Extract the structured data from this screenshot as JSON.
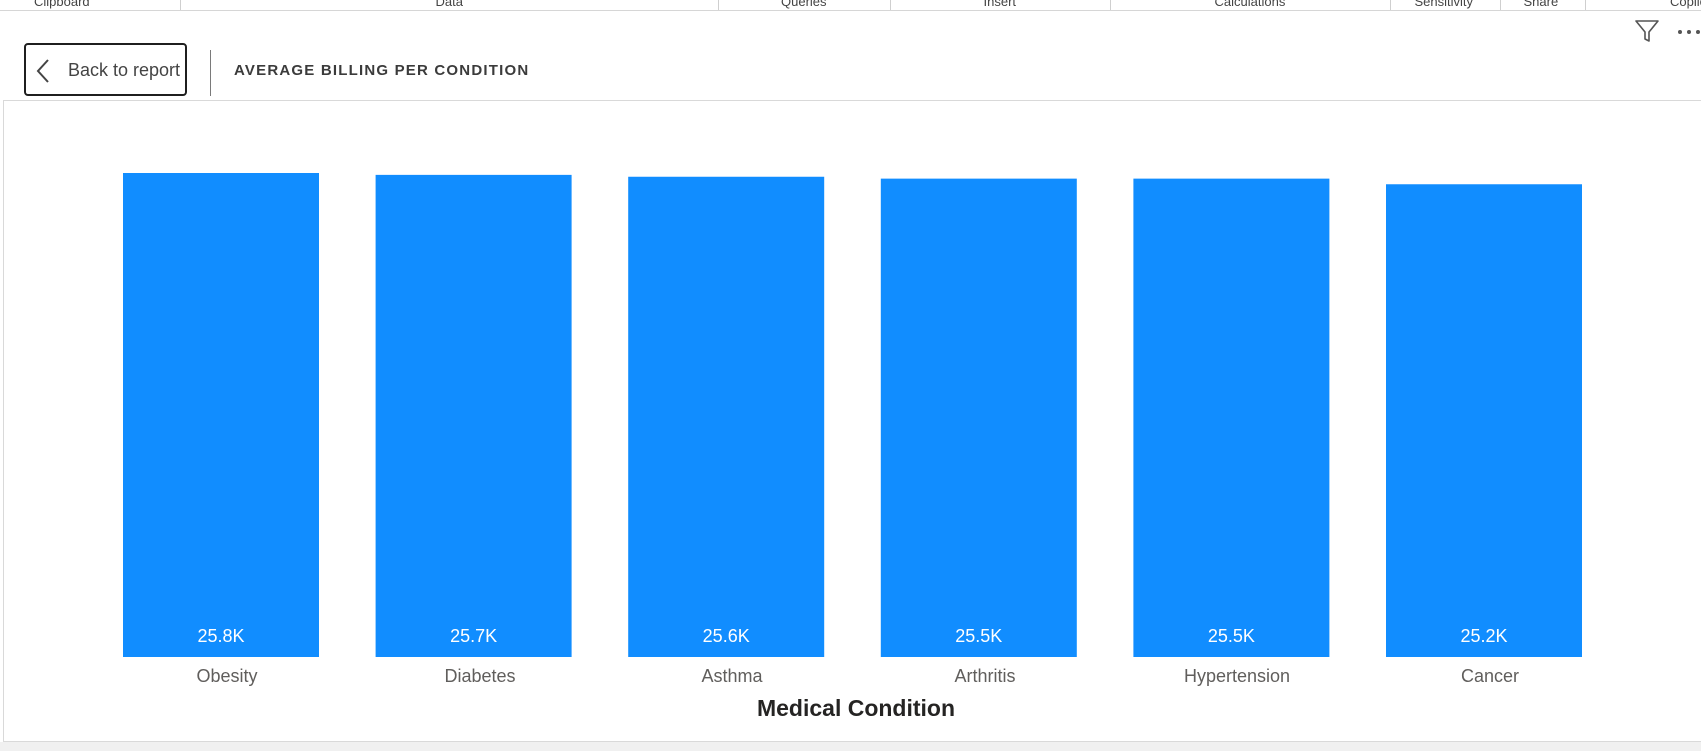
{
  "ribbon": {
    "groups": [
      "Clipboard",
      "Data",
      "Queries",
      "Insert",
      "Calculations",
      "Sensitivity",
      "Share",
      "Copilot"
    ]
  },
  "header": {
    "back_label": "Back to report",
    "title": "AVERAGE BILLING PER CONDITION"
  },
  "icons": {
    "back": "chevron-left-icon",
    "filter": "filter-icon",
    "more": "more-options-icon"
  },
  "colors": {
    "bar": "#118DFF",
    "data_label": "#FFFFFF",
    "axis_text": "#605E5C",
    "axis_title": "#252423"
  },
  "chart_data": {
    "type": "bar",
    "title": "",
    "xlabel": "Medical Condition",
    "ylabel": "",
    "categories": [
      "Obesity",
      "Diabetes",
      "Asthma",
      "Arthritis",
      "Hypertension",
      "Cancer"
    ],
    "values": [
      25800,
      25700,
      25600,
      25500,
      25500,
      25200
    ],
    "data_labels": [
      "25.8K",
      "25.7K",
      "25.6K",
      "25.5K",
      "25.5K",
      "25.2K"
    ],
    "ylim": [
      0,
      25800
    ],
    "grid": false,
    "legend": "none"
  }
}
